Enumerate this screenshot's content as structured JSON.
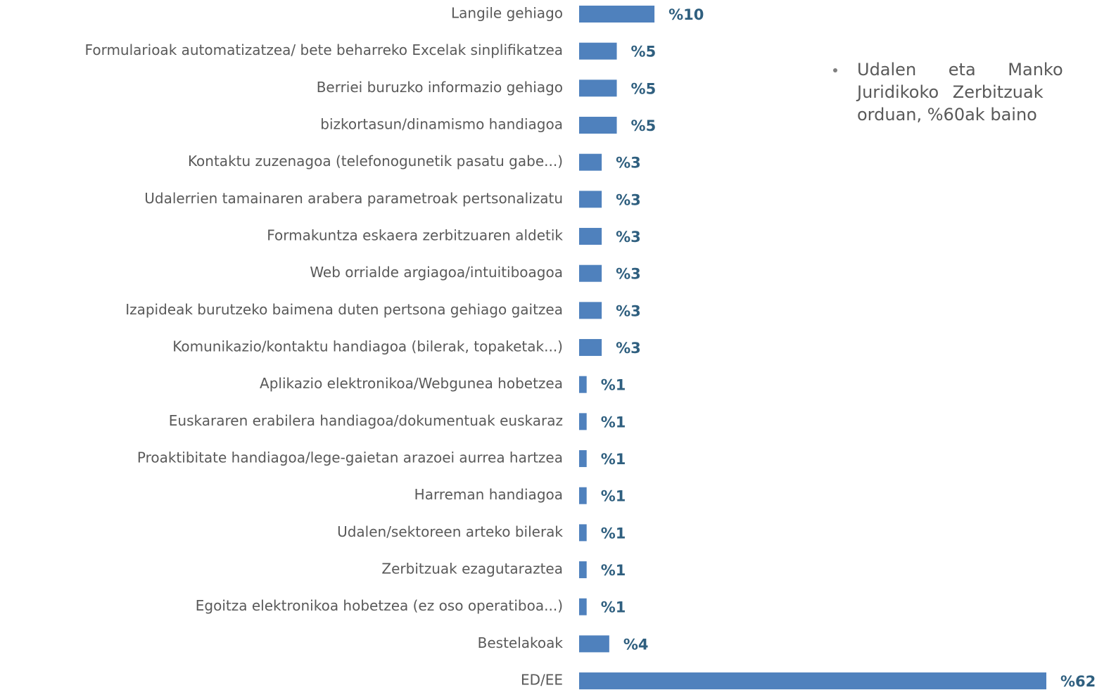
{
  "chart_data": {
    "type": "hbar",
    "categories": [
      "Langile gehiago",
      "Formularioak automatizatzea/ bete beharreko Excelak sinplifikatzea",
      "Berriei buruzko informazio gehiago",
      "bizkortasun/dinamismo handiagoa",
      "Kontaktu zuzenagoa (telefonogunetik pasatu gabe...)",
      "Udalerrien tamainaren arabera parametroak pertsonalizatu",
      "Formakuntza eskaera zerbitzuaren aldetik",
      "Web orrialde argiagoa/intuitiboagoa",
      "Izapideak burutzeko baimena duten pertsona gehiago gaitzea",
      "Komunikazio/kontaktu handiagoa (bilerak, topaketak...)",
      "Aplikazio elektronikoa/Webgunea hobetzea",
      "Euskararen erabilera handiagoa/dokumentuak euskaraz",
      "Proaktibitate handiagoa/lege-gaietan arazoei aurrea hartzea",
      "Harreman handiagoa",
      "Udalen/sektoreen arteko bilerak",
      "Zerbitzuak ezagutaraztea",
      "Egoitza elektronikoa hobetzea (ez oso operatiboa...)",
      "Bestelakoak",
      "ED/EE"
    ],
    "values": [
      10,
      5,
      5,
      5,
      3,
      3,
      3,
      3,
      3,
      3,
      1,
      1,
      1,
      1,
      1,
      1,
      1,
      4,
      62
    ],
    "value_labels": [
      "%10",
      "%5",
      "%5",
      "%5",
      "%3",
      "%3",
      "%3",
      "%3",
      "%3",
      "%3",
      "%1",
      "%1",
      "%1",
      "%1",
      "%1",
      "%1",
      "%1",
      "%4",
      "%62"
    ],
    "color": "#4f81bd",
    "annotation": [
      "Udalen eta Manko",
      "Juridikoko Zerbitzuak",
      "orduan, %60ak baino"
    ]
  }
}
